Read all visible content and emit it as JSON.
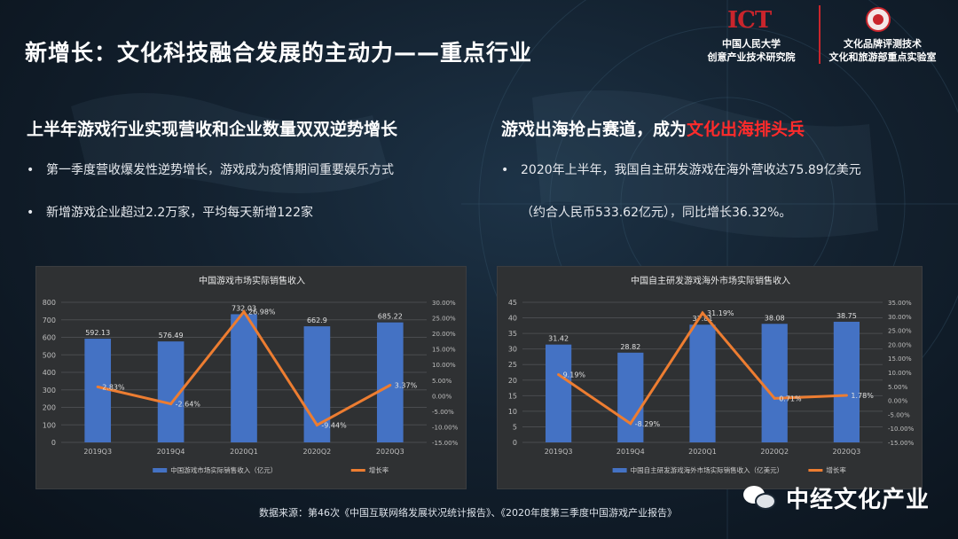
{
  "title": "新增长：文化科技融合发展的主动力——重点行业",
  "logos": {
    "ict_mark": "ICT",
    "left_line1": "中国人民大学",
    "left_line2": "创意产业技术研究院",
    "right_line1": "文化品牌评测技术",
    "right_line2": "文化和旅游部重点实验室"
  },
  "left_section": {
    "heading": "上半年游戏行业实现营收和企业数量双双逆势增长",
    "bullets": [
      "第一季度营收爆发性逆势增长，游戏成为疫情期间重要娱乐方式",
      "新增游戏企业超过2.2万家，平均每天新增122家"
    ]
  },
  "right_section": {
    "heading_prefix": "游戏出海抢占赛道，成为",
    "heading_highlight": "文化出海排头兵",
    "bullet_line1": "2020年上半年，我国自主研发游戏在海外营收达75.89亿美元",
    "bullet_line2": "（约合人民币533.62亿元），同比增长36.32%。"
  },
  "bullet_symbol": "•",
  "source": "数据来源：第46次《中国互联网络发展状况统计报告》、《2020年度第三季度中国游戏产业报告》",
  "brand": "中经文化产业",
  "colors": {
    "bar": "#4472c4",
    "line": "#ed7d31",
    "highlight": "#ff2b2b"
  },
  "chart_data": [
    {
      "type": "bar",
      "title": "中国游戏市场实际销售收入",
      "categories": [
        "2019Q3",
        "2019Q4",
        "2020Q1",
        "2020Q2",
        "2020Q3"
      ],
      "series": [
        {
          "name": "中国游戏市场实际销售收入（亿元）",
          "type": "bar",
          "axis": "left",
          "values": [
            592.13,
            576.49,
            732.03,
            662.9,
            685.22
          ],
          "labels": [
            "592.13",
            "576.49",
            "732.03",
            "662.9",
            "685.22"
          ]
        },
        {
          "name": "增长率",
          "type": "line",
          "axis": "right",
          "values": [
            2.83,
            -2.64,
            26.98,
            -9.44,
            3.37
          ],
          "labels": [
            "2.83%",
            "-2.64%",
            "26.98%",
            "-9.44%",
            "3.37%"
          ]
        }
      ],
      "left_axis": {
        "min": 0,
        "max": 800,
        "ticks": [
          "0",
          "100",
          "200",
          "300",
          "400",
          "500",
          "600",
          "700",
          "800"
        ]
      },
      "right_axis": {
        "min": -15,
        "max": 30,
        "ticks": [
          "-15.00%",
          "-10.00%",
          "-5.00%",
          "0.00%",
          "5.00%",
          "10.00%",
          "15.00%",
          "20.00%",
          "25.00%",
          "30.00%"
        ]
      },
      "legend": "bottom"
    },
    {
      "type": "bar",
      "title": "中国自主研发游戏海外市场实际销售收入",
      "categories": [
        "2019Q3",
        "2019Q4",
        "2020Q1",
        "2020Q2",
        "2020Q3"
      ],
      "series": [
        {
          "name": "中国自主研发游戏海外市场实际销售收入（亿美元）",
          "type": "bar",
          "axis": "left",
          "values": [
            31.42,
            28.82,
            37.81,
            38.08,
            38.75
          ],
          "labels": [
            "31.42",
            "28.82",
            "37.81",
            "38.08",
            "38.75"
          ]
        },
        {
          "name": "增长率",
          "type": "line",
          "axis": "right",
          "values": [
            9.19,
            -8.29,
            31.19,
            0.71,
            1.78
          ],
          "labels": [
            "9.19%",
            "-8.29%",
            "31.19%",
            "0.71%",
            "1.78%"
          ]
        }
      ],
      "left_axis": {
        "min": 0,
        "max": 45,
        "ticks": [
          "0",
          "5",
          "10",
          "15",
          "20",
          "25",
          "30",
          "35",
          "40",
          "45"
        ]
      },
      "right_axis": {
        "min": -15,
        "max": 35,
        "ticks": [
          "-15.00%",
          "-10.00%",
          "-5.00%",
          "0.00%",
          "5.00%",
          "10.00%",
          "15.00%",
          "20.00%",
          "25.00%",
          "30.00%",
          "35.00%"
        ]
      },
      "legend": "bottom"
    }
  ]
}
